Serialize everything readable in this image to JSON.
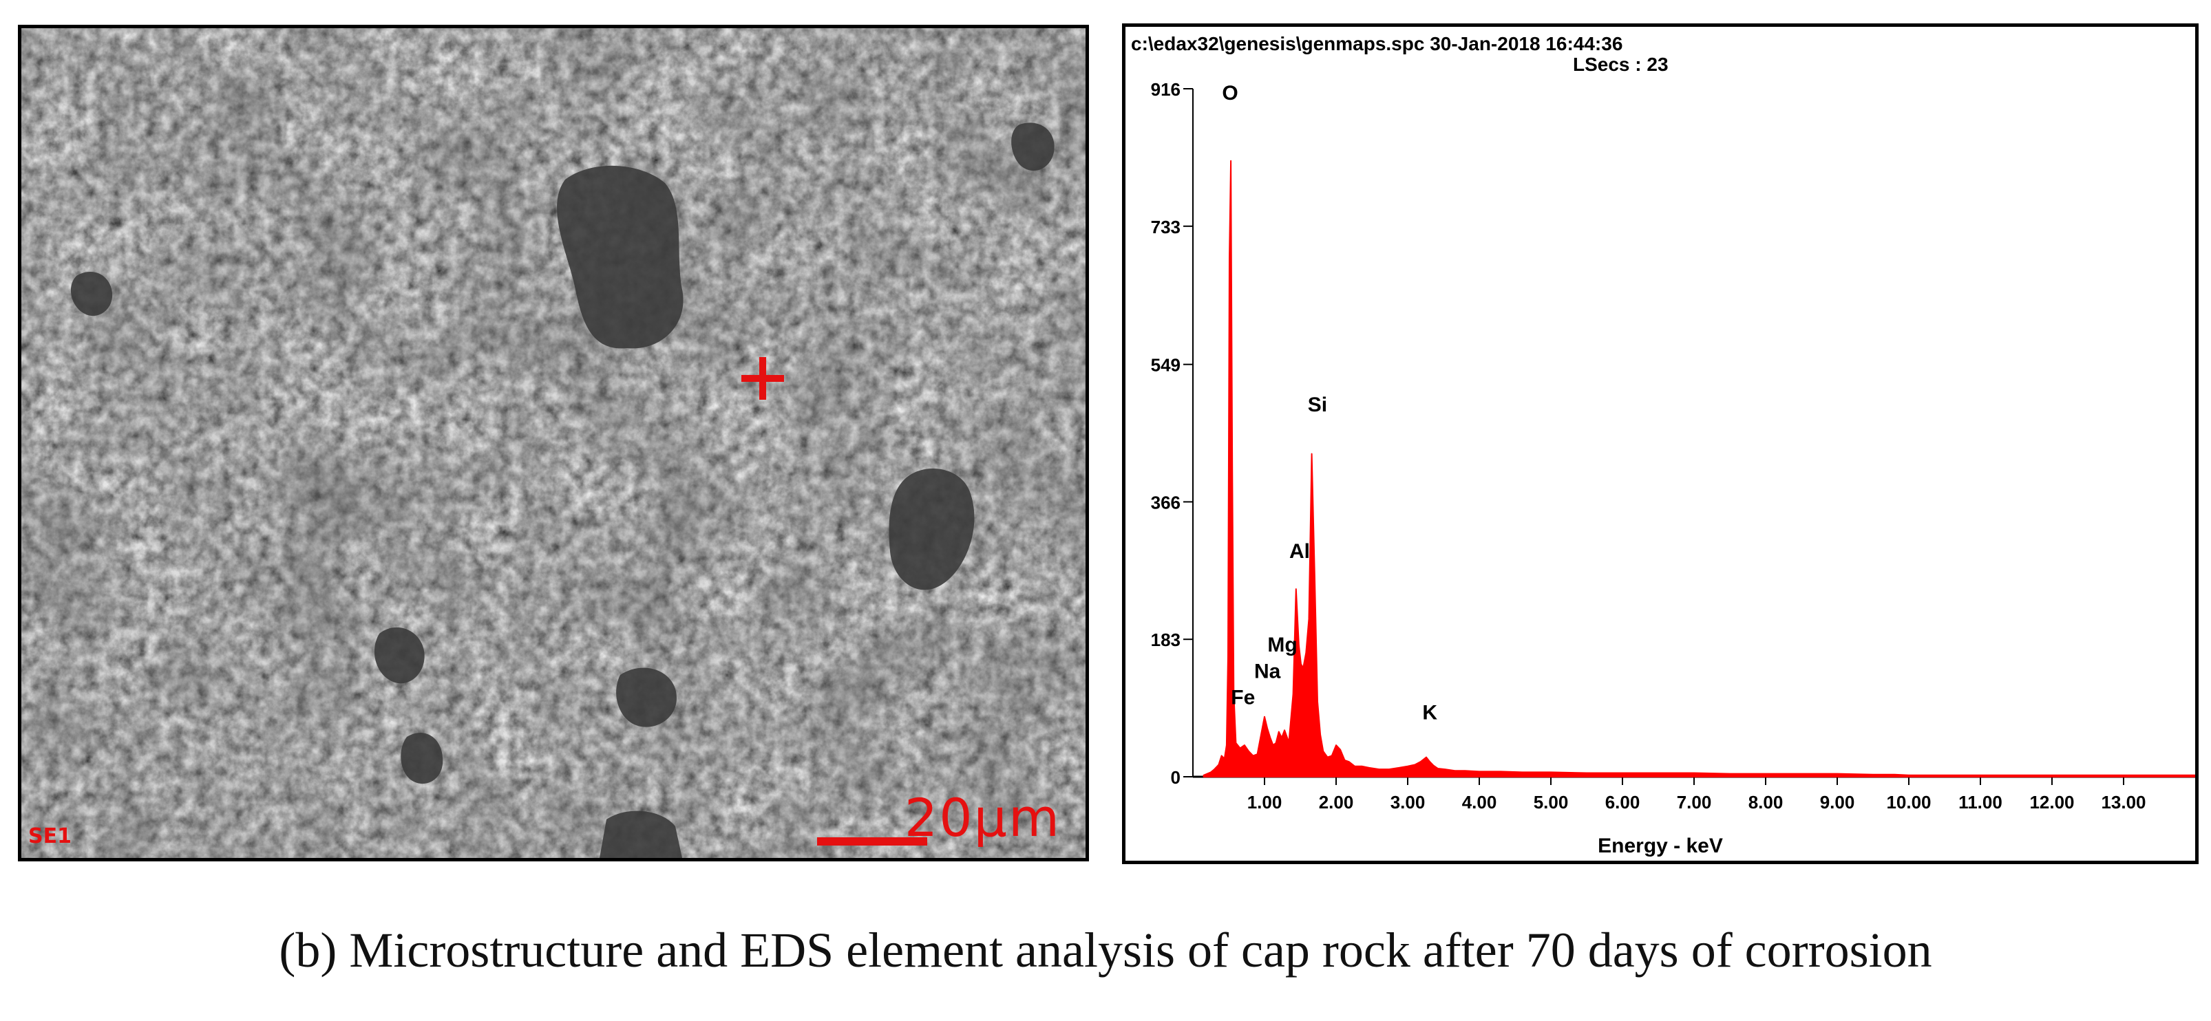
{
  "sem_image": {
    "scale_label": "20µm",
    "corner_label": "SE1",
    "marker_color": "#e51010",
    "marker_icon": "crosshair-plus-icon"
  },
  "caption": "(b) Microstructure and EDS element analysis of cap rock after 70 days of corrosion",
  "colors": {
    "spectrum": "#ff0000",
    "frame": "#000000"
  },
  "chart_data": {
    "type": "line",
    "title": "c:\\edax32\\genesis\\genmaps.spc  30-Jan-2018 16:44:36",
    "subtitle": "LSecs :  23",
    "xlabel": "Energy - keV",
    "ylabel": "",
    "xlim": [
      0,
      14.0
    ],
    "ylim": [
      0,
      916
    ],
    "x_ticks": [
      1.0,
      2.0,
      3.0,
      4.0,
      5.0,
      6.0,
      7.0,
      8.0,
      9.0,
      10.0,
      11.0,
      12.0,
      13.0
    ],
    "x_tick_labels": [
      "1.00",
      "2.00",
      "3.00",
      "4.00",
      "5.00",
      "6.00",
      "7.00",
      "8.00",
      "9.00",
      "10.00",
      "11.00",
      "12.00",
      "13.00"
    ],
    "y_ticks": [
      0,
      183,
      366,
      549,
      733,
      916
    ],
    "y_tick_labels": [
      "0",
      "183",
      "366",
      "549",
      "733",
      "916"
    ],
    "grid": false,
    "series": [
      {
        "color": "#ff0000",
        "x": [
          0.15,
          0.25,
          0.3,
          0.36,
          0.4,
          0.44,
          0.47,
          0.49,
          0.51,
          0.53,
          0.55,
          0.57,
          0.6,
          0.66,
          0.72,
          0.78,
          0.84,
          0.9,
          0.96,
          1.0,
          1.04,
          1.08,
          1.12,
          1.16,
          1.2,
          1.24,
          1.28,
          1.34,
          1.4,
          1.44,
          1.48,
          1.51,
          1.54,
          1.58,
          1.62,
          1.66,
          1.7,
          1.74,
          1.78,
          1.82,
          1.88,
          1.94,
          2.0,
          2.06,
          2.12,
          2.18,
          2.26,
          2.36,
          2.46,
          2.6,
          2.74,
          2.88,
          3.0,
          3.1,
          3.18,
          3.26,
          3.31,
          3.36,
          3.42,
          3.52,
          3.66,
          3.8,
          4.0,
          4.3,
          4.6,
          5.0,
          5.5,
          6.0,
          6.5,
          7.0,
          7.5,
          8.0,
          8.5,
          9.0,
          9.5,
          9.8,
          10.0,
          11.0,
          12.0,
          13.0,
          14.0
        ],
        "values": [
          2,
          6,
          10,
          16,
          28,
          24,
          42,
          160,
          690,
          820,
          410,
          110,
          45,
          38,
          42,
          34,
          28,
          30,
          60,
          80,
          64,
          52,
          42,
          45,
          60,
          52,
          62,
          46,
          110,
          250,
          175,
          150,
          145,
          165,
          210,
          430,
          270,
          100,
          56,
          34,
          26,
          28,
          42,
          36,
          22,
          20,
          14,
          14,
          12,
          10,
          10,
          12,
          14,
          16,
          20,
          26,
          20,
          15,
          11,
          10,
          8,
          8,
          7,
          7,
          6,
          6,
          5,
          5,
          5,
          5,
          4,
          4,
          4,
          4,
          3,
          3,
          2,
          2,
          2,
          2,
          2
        ]
      }
    ],
    "annotations": [
      {
        "label": "O",
        "x": 0.52,
        "y": 916
      },
      {
        "label": "Si",
        "x": 1.74,
        "y": 470
      },
      {
        "label": "Al",
        "x": 1.49,
        "y": 275
      },
      {
        "label": "Mg",
        "x": 1.25,
        "y": 150
      },
      {
        "label": "Na",
        "x": 1.04,
        "y": 115
      },
      {
        "label": "Fe",
        "x": 0.7,
        "y": 80
      },
      {
        "label": "K",
        "x": 3.31,
        "y": 60
      }
    ]
  }
}
